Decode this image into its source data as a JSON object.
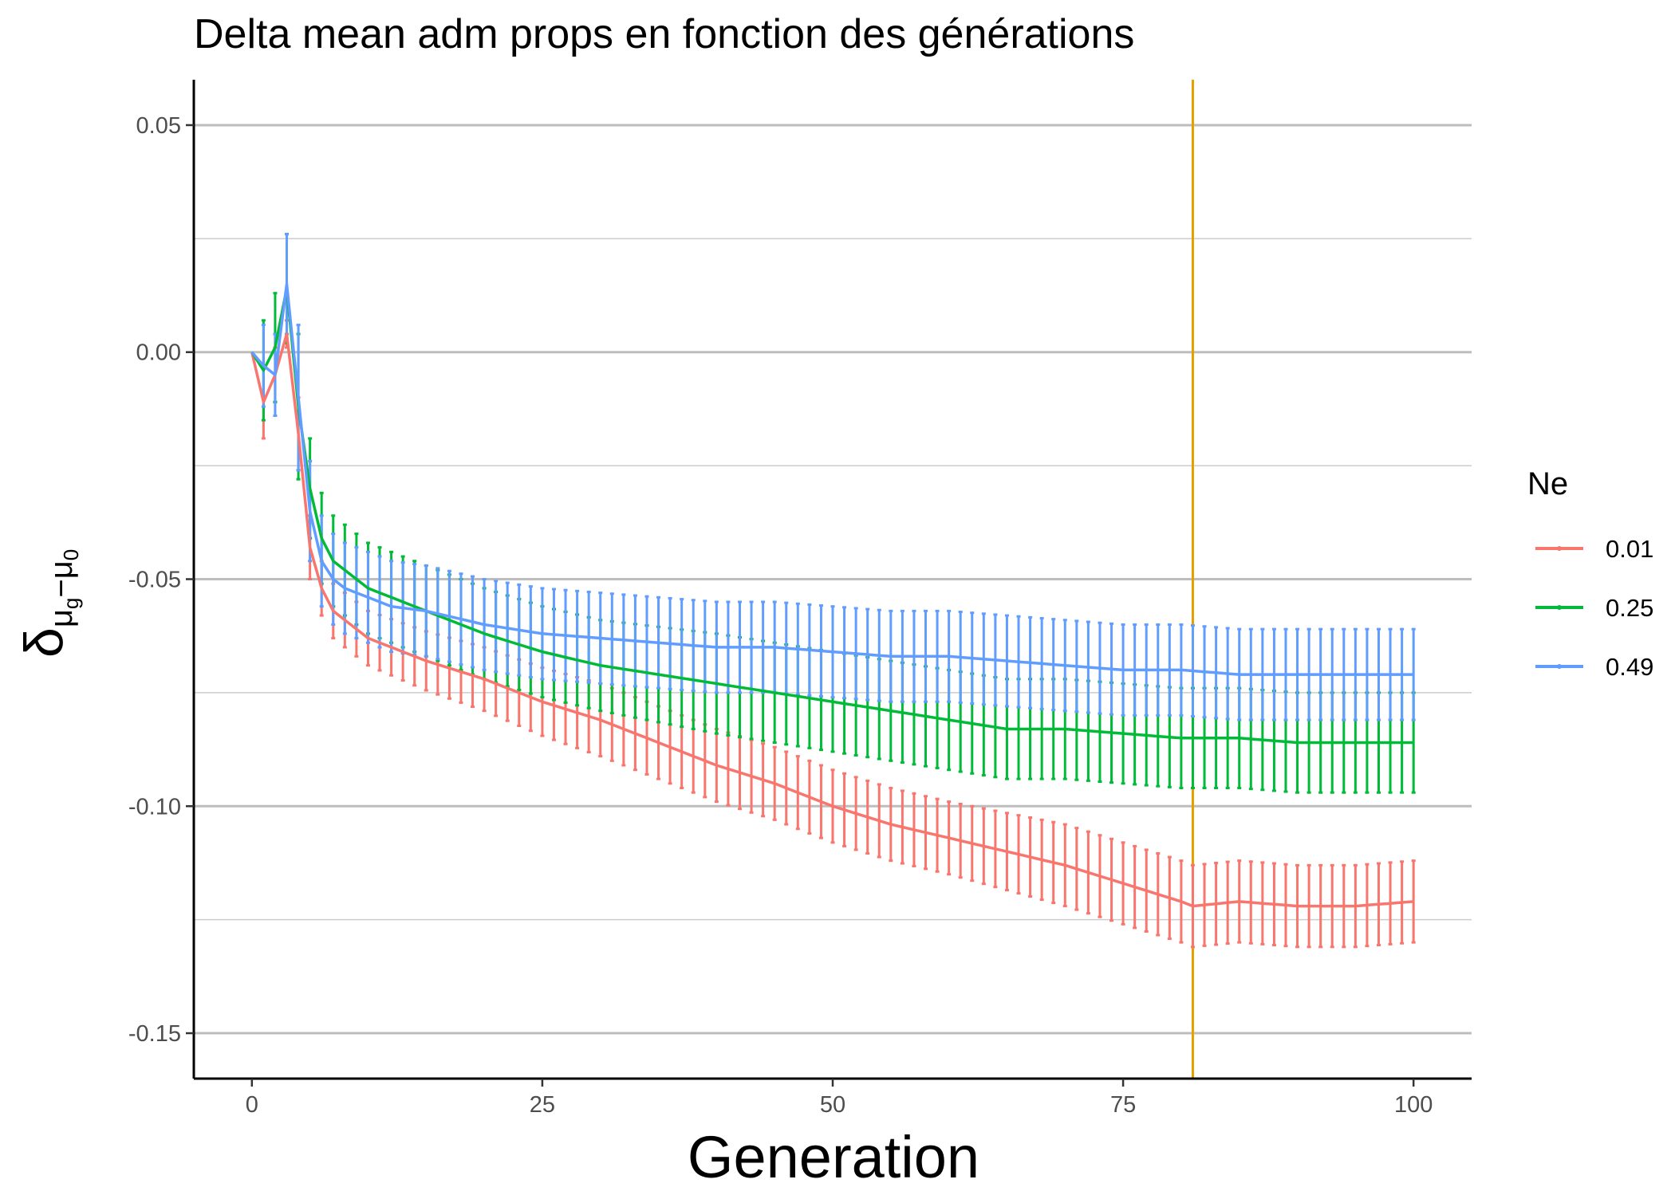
{
  "chart_data": {
    "type": "line",
    "title": "Delta mean adm props en fonction des générations",
    "xlabel": "Generation",
    "ylabel": {
      "main": "δ",
      "subscript_a": "μ",
      "subsub_a": "g",
      "minus": "−",
      "subscript_b": "μ",
      "subsub_b": "0"
    },
    "xlim": [
      -5,
      105
    ],
    "ylim": [
      -0.16,
      0.06
    ],
    "x_ticks": [
      {
        "value": 0,
        "label": "0"
      },
      {
        "value": 25,
        "label": "25"
      },
      {
        "value": 50,
        "label": "50"
      },
      {
        "value": 75,
        "label": "75"
      },
      {
        "value": 100,
        "label": "100"
      }
    ],
    "y_ticks": [
      {
        "value": 0.05,
        "label": "0.05"
      },
      {
        "value": 0.0,
        "label": "0.00"
      },
      {
        "value": -0.05,
        "label": "-0.05"
      },
      {
        "value": -0.1,
        "label": "-0.10"
      },
      {
        "value": -0.15,
        "label": "-0.15"
      }
    ],
    "y_minor_gridlines": [
      0.025,
      -0.025,
      -0.075,
      -0.125
    ],
    "grid": "horizontal",
    "vline": {
      "x": 81,
      "color": "#E69F00"
    },
    "legend": {
      "title": "Ne",
      "position": "right"
    },
    "series": [
      {
        "name": "0.01",
        "color": "#F8766D",
        "anchors": [
          [
            0,
            0
          ],
          [
            1,
            -0.011
          ],
          [
            2,
            -0.005
          ],
          [
            3,
            0.004
          ],
          [
            4,
            -0.018
          ],
          [
            5,
            -0.043
          ],
          [
            6,
            -0.052
          ],
          [
            7,
            -0.057
          ],
          [
            8,
            -0.059
          ],
          [
            9,
            -0.061
          ],
          [
            10,
            -0.063
          ],
          [
            12,
            -0.065
          ],
          [
            15,
            -0.068
          ],
          [
            20,
            -0.072
          ],
          [
            25,
            -0.077
          ],
          [
            30,
            -0.081
          ],
          [
            35,
            -0.086
          ],
          [
            40,
            -0.091
          ],
          [
            45,
            -0.095
          ],
          [
            50,
            -0.1
          ],
          [
            55,
            -0.104
          ],
          [
            60,
            -0.107
          ],
          [
            65,
            -0.11
          ],
          [
            70,
            -0.113
          ],
          [
            75,
            -0.117
          ],
          [
            80,
            -0.121
          ],
          [
            81,
            -0.122
          ],
          [
            85,
            -0.121
          ],
          [
            90,
            -0.122
          ],
          [
            95,
            -0.122
          ],
          [
            100,
            -0.121
          ]
        ],
        "error_anchors": [
          [
            0,
            0
          ],
          [
            1,
            0.008
          ],
          [
            2,
            0.006
          ],
          [
            3,
            0.003
          ],
          [
            4,
            0.008
          ],
          [
            5,
            0.007
          ],
          [
            6,
            0.006
          ],
          [
            10,
            0.006
          ],
          [
            20,
            0.007
          ],
          [
            30,
            0.008
          ],
          [
            40,
            0.008
          ],
          [
            50,
            0.008
          ],
          [
            60,
            0.008
          ],
          [
            70,
            0.009
          ],
          [
            80,
            0.009
          ],
          [
            90,
            0.009
          ],
          [
            100,
            0.009
          ]
        ]
      },
      {
        "name": "0.25",
        "color": "#00BA38",
        "anchors": [
          [
            0,
            0
          ],
          [
            1,
            -0.004
          ],
          [
            2,
            0.001
          ],
          [
            3,
            0.014
          ],
          [
            4,
            -0.012
          ],
          [
            5,
            -0.03
          ],
          [
            6,
            -0.041
          ],
          [
            7,
            -0.046
          ],
          [
            8,
            -0.048
          ],
          [
            10,
            -0.052
          ],
          [
            12,
            -0.054
          ],
          [
            15,
            -0.057
          ],
          [
            20,
            -0.062
          ],
          [
            25,
            -0.066
          ],
          [
            30,
            -0.069
          ],
          [
            35,
            -0.071
          ],
          [
            40,
            -0.073
          ],
          [
            45,
            -0.075
          ],
          [
            50,
            -0.077
          ],
          [
            55,
            -0.079
          ],
          [
            60,
            -0.081
          ],
          [
            65,
            -0.083
          ],
          [
            70,
            -0.083
          ],
          [
            75,
            -0.084
          ],
          [
            80,
            -0.085
          ],
          [
            85,
            -0.085
          ],
          [
            90,
            -0.086
          ],
          [
            95,
            -0.086
          ],
          [
            100,
            -0.086
          ]
        ],
        "error_anchors": [
          [
            0,
            0
          ],
          [
            1,
            0.011
          ],
          [
            2,
            0.012
          ],
          [
            3,
            0.012
          ],
          [
            4,
            0.016
          ],
          [
            5,
            0.011
          ],
          [
            6,
            0.01
          ],
          [
            10,
            0.01
          ],
          [
            20,
            0.01
          ],
          [
            30,
            0.01
          ],
          [
            40,
            0.011
          ],
          [
            50,
            0.011
          ],
          [
            60,
            0.011
          ],
          [
            70,
            0.011
          ],
          [
            80,
            0.011
          ],
          [
            90,
            0.011
          ],
          [
            100,
            0.011
          ]
        ]
      },
      {
        "name": "0.49",
        "color": "#619CFF",
        "anchors": [
          [
            0,
            0
          ],
          [
            1,
            -0.003
          ],
          [
            2,
            -0.005
          ],
          [
            3,
            0.015
          ],
          [
            4,
            -0.01
          ],
          [
            5,
            -0.035
          ],
          [
            6,
            -0.046
          ],
          [
            7,
            -0.05
          ],
          [
            8,
            -0.052
          ],
          [
            10,
            -0.054
          ],
          [
            12,
            -0.056
          ],
          [
            15,
            -0.057
          ],
          [
            20,
            -0.06
          ],
          [
            25,
            -0.062
          ],
          [
            30,
            -0.063
          ],
          [
            35,
            -0.064
          ],
          [
            40,
            -0.065
          ],
          [
            45,
            -0.065
          ],
          [
            50,
            -0.066
          ],
          [
            55,
            -0.067
          ],
          [
            60,
            -0.067
          ],
          [
            65,
            -0.068
          ],
          [
            70,
            -0.069
          ],
          [
            75,
            -0.07
          ],
          [
            80,
            -0.07
          ],
          [
            85,
            -0.071
          ],
          [
            90,
            -0.071
          ],
          [
            95,
            -0.071
          ],
          [
            100,
            -0.071
          ]
        ],
        "error_anchors": [
          [
            0,
            0
          ],
          [
            1,
            0.009
          ],
          [
            2,
            0.009
          ],
          [
            3,
            0.011
          ],
          [
            4,
            0.016
          ],
          [
            5,
            0.011
          ],
          [
            6,
            0.01
          ],
          [
            10,
            0.01
          ],
          [
            20,
            0.01
          ],
          [
            30,
            0.01
          ],
          [
            40,
            0.01
          ],
          [
            50,
            0.01
          ],
          [
            60,
            0.01
          ],
          [
            70,
            0.01
          ],
          [
            80,
            0.01
          ],
          [
            90,
            0.01
          ],
          [
            100,
            0.01
          ]
        ]
      }
    ]
  }
}
